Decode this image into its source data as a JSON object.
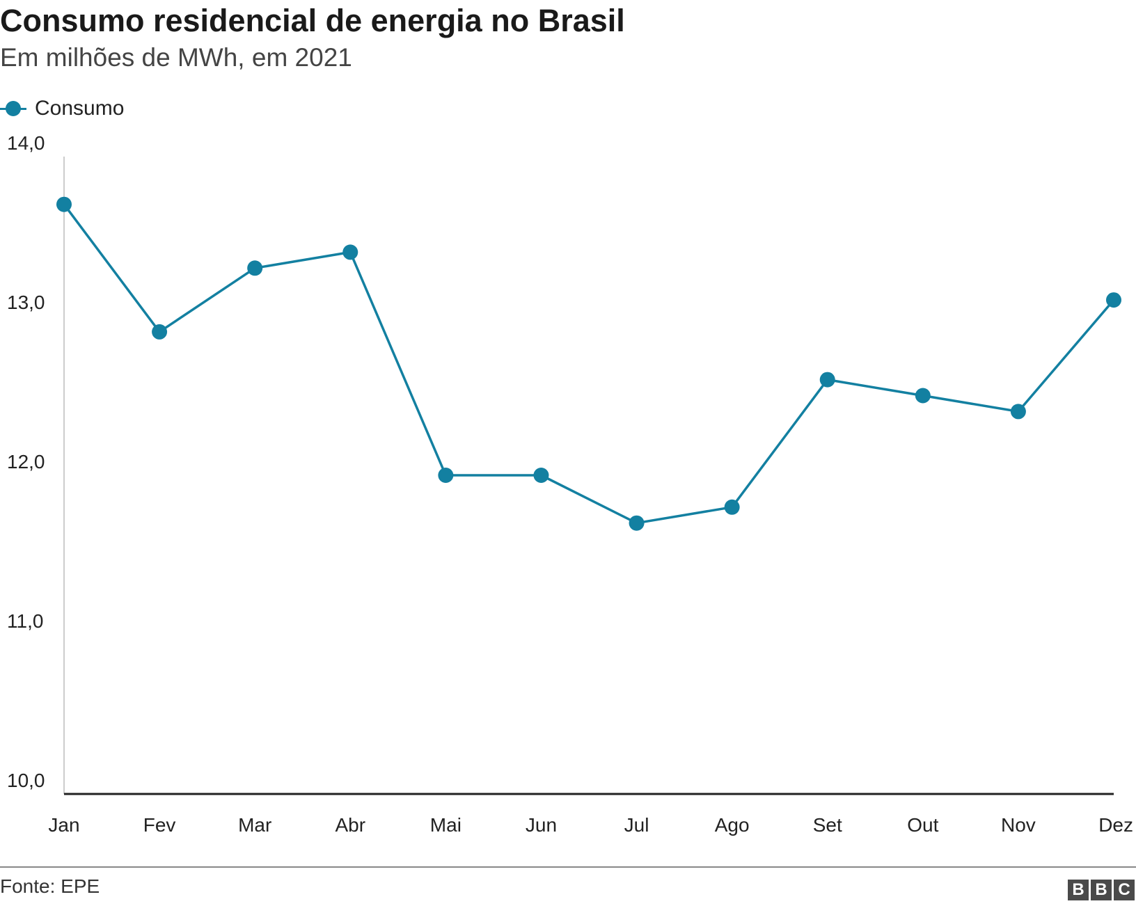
{
  "header": {
    "title": "Consumo residencial de energia no Brasil",
    "subtitle": "Em milhões de MWh, em 2021"
  },
  "legend": {
    "label": "Consumo",
    "color": "#1380A1"
  },
  "footer": {
    "source": "Fonte: EPE",
    "logo": [
      "B",
      "B",
      "C"
    ]
  },
  "chart_data": {
    "type": "line",
    "title": "Consumo residencial de energia no Brasil",
    "subtitle": "Em milhões de MWh, em 2021",
    "xlabel": "",
    "ylabel": "",
    "categories": [
      "Jan",
      "Fev",
      "Mar",
      "Abr",
      "Mai",
      "Jun",
      "Jul",
      "Ago",
      "Set",
      "Out",
      "Nov",
      "Dez"
    ],
    "series": [
      {
        "name": "Consumo",
        "color": "#1380A1",
        "values": [
          13.7,
          12.9,
          13.3,
          13.4,
          12.0,
          12.0,
          11.7,
          11.8,
          12.6,
          12.5,
          12.4,
          13.1
        ]
      }
    ],
    "ylim": [
      10.0,
      14.0
    ],
    "yticks": [
      10.0,
      11.0,
      12.0,
      13.0,
      14.0
    ],
    "ytick_labels": [
      "10,0",
      "11,0",
      "12,0",
      "13,0",
      "14,0"
    ],
    "grid": false,
    "legend_position": "top-left"
  }
}
